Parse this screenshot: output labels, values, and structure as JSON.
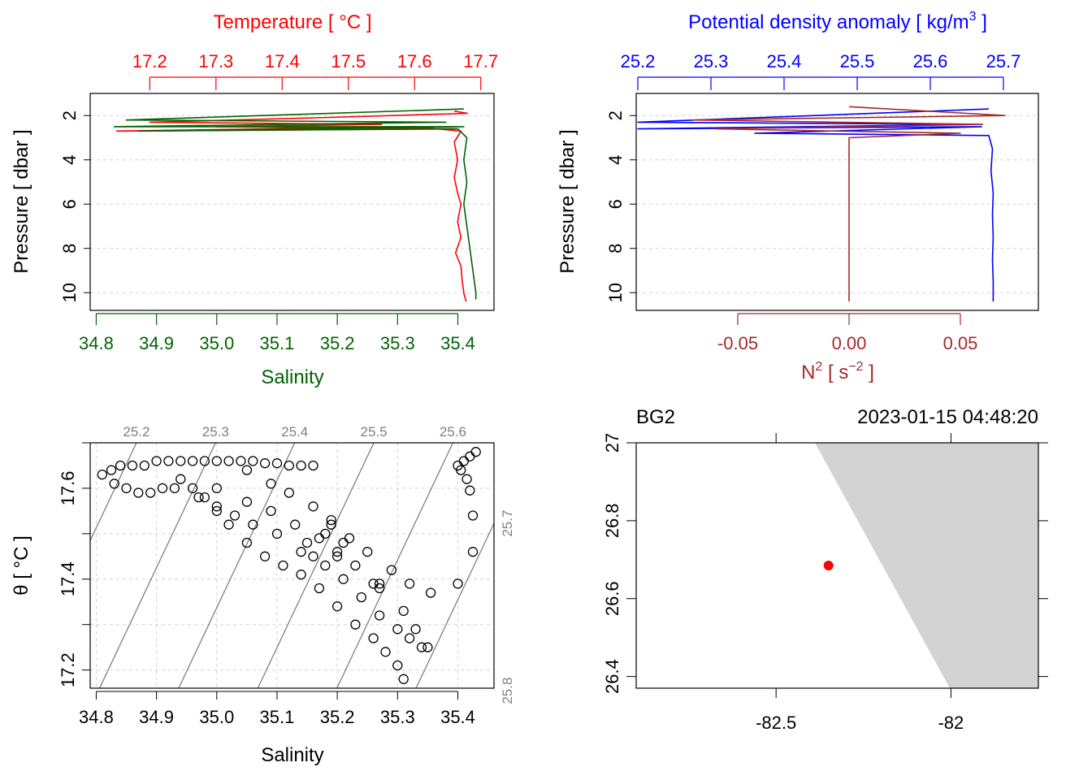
{
  "chart_data": [
    {
      "type": "line",
      "panel": "ctd-profile",
      "top_axis_label": "Temperature [ °C ]",
      "top_axis_ticks": [
        "17.2",
        "17.3",
        "17.4",
        "17.5",
        "17.6",
        "17.7"
      ],
      "top_axis_range": [
        17.11,
        17.72
      ],
      "bottom_axis_label": "Salinity",
      "bottom_axis_ticks": [
        "34.8",
        "34.9",
        "35.0",
        "35.1",
        "35.2",
        "35.3",
        "35.4"
      ],
      "bottom_axis_range": [
        34.79,
        35.46
      ],
      "ylabel": "Pressure [ dbar ]",
      "y_ticks": [
        "2",
        "4",
        "6",
        "8",
        "10"
      ],
      "ylim": [
        10.8,
        1.0
      ],
      "y_reversed": true,
      "grid": true,
      "colors": {
        "temperature": "#ff0000",
        "salinity": "#006400"
      },
      "series": [
        {
          "axis": "temperature",
          "data": [
            [
              17.66,
              1.8
            ],
            [
              17.68,
              1.9
            ],
            [
              17.45,
              2.1
            ],
            [
              17.2,
              2.3
            ],
            [
              17.55,
              2.4
            ],
            [
              17.3,
              2.5
            ],
            [
              17.66,
              2.6
            ],
            [
              17.15,
              2.7
            ],
            [
              17.6,
              2.5
            ],
            [
              17.67,
              2.7
            ],
            [
              17.66,
              3.2
            ],
            [
              17.665,
              4.0
            ],
            [
              17.66,
              4.8
            ],
            [
              17.665,
              5.5
            ],
            [
              17.67,
              6.0
            ],
            [
              17.665,
              6.8
            ],
            [
              17.67,
              7.5
            ],
            [
              17.662,
              8.2
            ],
            [
              17.67,
              8.8
            ],
            [
              17.672,
              9.5
            ],
            [
              17.675,
              10.1
            ],
            [
              17.678,
              10.4
            ]
          ]
        },
        {
          "axis": "salinity",
          "data": [
            [
              35.41,
              1.7
            ],
            [
              34.85,
              2.2
            ],
            [
              35.38,
              2.3
            ],
            [
              34.83,
              2.5
            ],
            [
              35.41,
              2.5
            ],
            [
              34.87,
              2.7
            ],
            [
              35.4,
              2.6
            ],
            [
              35.415,
              3.0
            ],
            [
              35.41,
              4.0
            ],
            [
              35.415,
              5.0
            ],
            [
              35.41,
              6.0
            ],
            [
              35.415,
              7.0
            ],
            [
              35.42,
              8.0
            ],
            [
              35.425,
              9.0
            ],
            [
              35.43,
              10.0
            ],
            [
              35.43,
              10.3
            ]
          ]
        }
      ]
    },
    {
      "type": "line",
      "panel": "density-n2",
      "top_axis_label": "Potential density anomaly [ kg/m",
      "top_axis_label_sup": "3",
      "top_axis_label_end": " ]",
      "top_axis_ticks": [
        "25.2",
        "25.3",
        "25.4",
        "25.5",
        "25.6",
        "25.7"
      ],
      "top_axis_range": [
        25.2,
        25.7
      ],
      "bottom_axis_label": "N",
      "bottom_axis_label_sup": "2",
      "bottom_axis_label_mid": " [ s",
      "bottom_axis_label_sup2": "−2",
      "bottom_axis_label_end": " ]",
      "bottom_axis_ticks": [
        "-0.05",
        "0.00",
        "0.05"
      ],
      "bottom_axis_range": [
        -0.05,
        0.05
      ],
      "ylabel": "Pressure [ dbar ]",
      "y_ticks": [
        "2",
        "4",
        "6",
        "8",
        "10"
      ],
      "ylim": [
        10.8,
        1.0
      ],
      "y_reversed": true,
      "grid": true,
      "colors": {
        "density": "#0000ff",
        "n2": "#a52a2a"
      },
      "series": [
        {
          "axis": "density",
          "data": [
            [
              25.68,
              1.7
            ],
            [
              25.2,
              2.3
            ],
            [
              25.66,
              2.4
            ],
            [
              25.2,
              2.6
            ],
            [
              25.67,
              2.5
            ],
            [
              25.36,
              2.8
            ],
            [
              25.68,
              2.9
            ],
            [
              25.685,
              3.5
            ],
            [
              25.683,
              4.5
            ],
            [
              25.686,
              5.5
            ],
            [
              25.685,
              6.5
            ],
            [
              25.686,
              7.5
            ],
            [
              25.685,
              8.5
            ],
            [
              25.686,
              9.5
            ],
            [
              25.686,
              10.4
            ]
          ]
        },
        {
          "axis": "n2",
          "data": [
            [
              0.0,
              1.6
            ],
            [
              0.07,
              2.0
            ],
            [
              -0.07,
              2.2
            ],
            [
              0.06,
              2.4
            ],
            [
              -0.06,
              2.6
            ],
            [
              0.05,
              2.8
            ],
            [
              0.0,
              3.0
            ],
            [
              0.0,
              4.0
            ],
            [
              0.0,
              6.0
            ],
            [
              0.0,
              8.0
            ],
            [
              0.0,
              10.4
            ]
          ]
        }
      ]
    },
    {
      "type": "scatter",
      "panel": "ts-diagram",
      "xlabel": "Salinity",
      "x_ticks": [
        "34.8",
        "34.9",
        "35.0",
        "35.1",
        "35.2",
        "35.3",
        "35.4"
      ],
      "xlim": [
        34.79,
        35.46
      ],
      "ylabel": "θ [ °C ]",
      "y_ticks": [
        "17.2",
        "17.4",
        "17.6"
      ],
      "ylim": [
        17.16,
        17.7
      ],
      "grid": true,
      "isopycnal_labels_top": [
        "25.2",
        "25.3",
        "25.4",
        "25.5",
        "25.6"
      ],
      "isopycnal_labels_right": [
        "25.7",
        "25.8"
      ],
      "isopycnal_color": "#808080",
      "point_color": "#000000",
      "series": [
        {
          "name": "",
          "points": [
            [
              34.81,
              17.63
            ],
            [
              34.825,
              17.64
            ],
            [
              34.84,
              17.65
            ],
            [
              34.86,
              17.65
            ],
            [
              34.88,
              17.65
            ],
            [
              34.9,
              17.66
            ],
            [
              34.92,
              17.66
            ],
            [
              34.94,
              17.66
            ],
            [
              34.96,
              17.66
            ],
            [
              34.98,
              17.66
            ],
            [
              35.0,
              17.66
            ],
            [
              35.02,
              17.66
            ],
            [
              35.04,
              17.66
            ],
            [
              35.06,
              17.66
            ],
            [
              35.08,
              17.655
            ],
            [
              35.1,
              17.655
            ],
            [
              35.12,
              17.65
            ],
            [
              35.14,
              17.65
            ],
            [
              35.16,
              17.65
            ],
            [
              34.83,
              17.61
            ],
            [
              34.85,
              17.6
            ],
            [
              34.87,
              17.59
            ],
            [
              34.89,
              17.59
            ],
            [
              34.91,
              17.6
            ],
            [
              34.93,
              17.6
            ],
            [
              34.94,
              17.62
            ],
            [
              34.97,
              17.58
            ],
            [
              35.0,
              17.55
            ],
            [
              35.02,
              17.52
            ],
            [
              35.05,
              17.48
            ],
            [
              35.08,
              17.45
            ],
            [
              35.11,
              17.43
            ],
            [
              35.14,
              17.41
            ],
            [
              35.17,
              17.38
            ],
            [
              35.2,
              17.34
            ],
            [
              35.23,
              17.3
            ],
            [
              35.26,
              17.27
            ],
            [
              35.28,
              17.24
            ],
            [
              35.3,
              17.21
            ],
            [
              35.31,
              17.18
            ],
            [
              35.0,
              17.6
            ],
            [
              35.05,
              17.57
            ],
            [
              35.09,
              17.55
            ],
            [
              35.13,
              17.52
            ],
            [
              35.17,
              17.49
            ],
            [
              35.2,
              17.46
            ],
            [
              35.23,
              17.43
            ],
            [
              35.27,
              17.39
            ],
            [
              35.31,
              17.33
            ],
            [
              35.33,
              17.29
            ],
            [
              35.35,
              17.25
            ],
            [
              35.05,
              17.64
            ],
            [
              35.09,
              17.61
            ],
            [
              35.12,
              17.59
            ],
            [
              35.16,
              17.56
            ],
            [
              35.19,
              17.53
            ],
            [
              35.22,
              17.49
            ],
            [
              35.25,
              17.46
            ],
            [
              35.29,
              17.42
            ],
            [
              35.32,
              17.39
            ],
            [
              35.355,
              17.37
            ],
            [
              34.96,
              17.6
            ],
            [
              34.98,
              17.58
            ],
            [
              35.0,
              17.56
            ],
            [
              35.03,
              17.54
            ],
            [
              35.06,
              17.52
            ],
            [
              35.1,
              17.5
            ],
            [
              35.14,
              17.46
            ],
            [
              35.18,
              17.43
            ],
            [
              35.21,
              17.4
            ],
            [
              35.24,
              17.36
            ],
            [
              35.27,
              17.32
            ],
            [
              35.3,
              17.29
            ],
            [
              35.32,
              17.27
            ],
            [
              35.34,
              17.25
            ],
            [
              35.18,
              17.5
            ],
            [
              35.19,
              17.52
            ],
            [
              35.21,
              17.48
            ],
            [
              35.15,
              17.48
            ],
            [
              35.16,
              17.45
            ],
            [
              35.2,
              17.45
            ],
            [
              35.26,
              17.39
            ],
            [
              35.27,
              17.38
            ],
            [
              35.4,
              17.65
            ],
            [
              35.41,
              17.66
            ],
            [
              35.42,
              17.67
            ],
            [
              35.43,
              17.68
            ],
            [
              35.405,
              17.64
            ],
            [
              35.415,
              17.62
            ],
            [
              35.42,
              17.595
            ],
            [
              35.425,
              17.54
            ],
            [
              35.425,
              17.46
            ],
            [
              35.4,
              17.39
            ]
          ]
        }
      ]
    },
    {
      "type": "scatter",
      "panel": "station-map",
      "station_label": "BG2",
      "time_label": "2023-01-15 04:48:20",
      "x_ticks": [
        "-82.5",
        "-82"
      ],
      "xlim": [
        -82.9,
        -81.75
      ],
      "y_ticks": [
        "26.4",
        "26.6",
        "26.8",
        "27"
      ],
      "ylim": [
        26.37,
        27.0
      ],
      "coastline_fill": "#d3d3d3",
      "point_color": "#ff0000",
      "station": {
        "lon": -82.35,
        "lat": 26.685
      }
    }
  ]
}
